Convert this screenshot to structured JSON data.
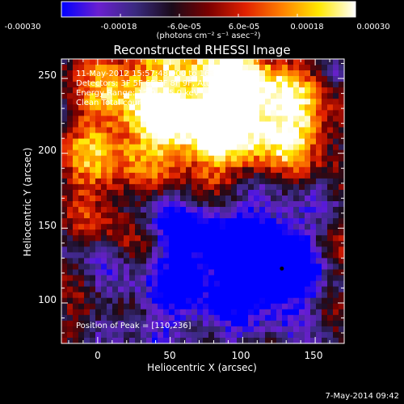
{
  "colorbar": {
    "ticks": [
      "-0.00030",
      "-0.00018",
      "-6.0e-05",
      "6.0e-05",
      "0.00018",
      "0.00030"
    ],
    "units": "(photons cm⁻² s⁻¹ asec⁻²)",
    "colors": [
      "#0000ff",
      "#6a1fd0",
      "#3a2a80",
      "#1a0b1a",
      "#7a0000",
      "#e02000",
      "#ff8000",
      "#ffe800",
      "#ffffff"
    ]
  },
  "chart_data": {
    "type": "heatmap",
    "title": "Reconstructed RHESSI Image",
    "xlabel": "Heliocentric X (arcsec)",
    "ylabel": "Heliocentric Y (arcsec)",
    "xlim": [
      -25,
      170
    ],
    "ylim": [
      73,
      263
    ],
    "x_ticks": [
      "0",
      "50",
      "100",
      "150"
    ],
    "y_ticks": [
      "100",
      "150",
      "200",
      "250"
    ],
    "x_tick_values": [
      0,
      50,
      100,
      150
    ],
    "y_tick_values": [
      100,
      150,
      200,
      250
    ],
    "annotations": [
      "11-May-2012 15:57:48.000 to 16:00:52.000",
      "Detectors: 3F 5F 6F 7F 8F 9F, Att 0",
      "Energy Range: 12.0 - 25.0 keV",
      "Clean     Total counts: 3.05E+03"
    ],
    "peak_label": "Position of Peak = [110,236]",
    "peak_position": [
      110,
      236
    ],
    "marker_position": [
      127,
      123
    ]
  },
  "footer": {
    "date": "7-May-2014 09:42"
  }
}
